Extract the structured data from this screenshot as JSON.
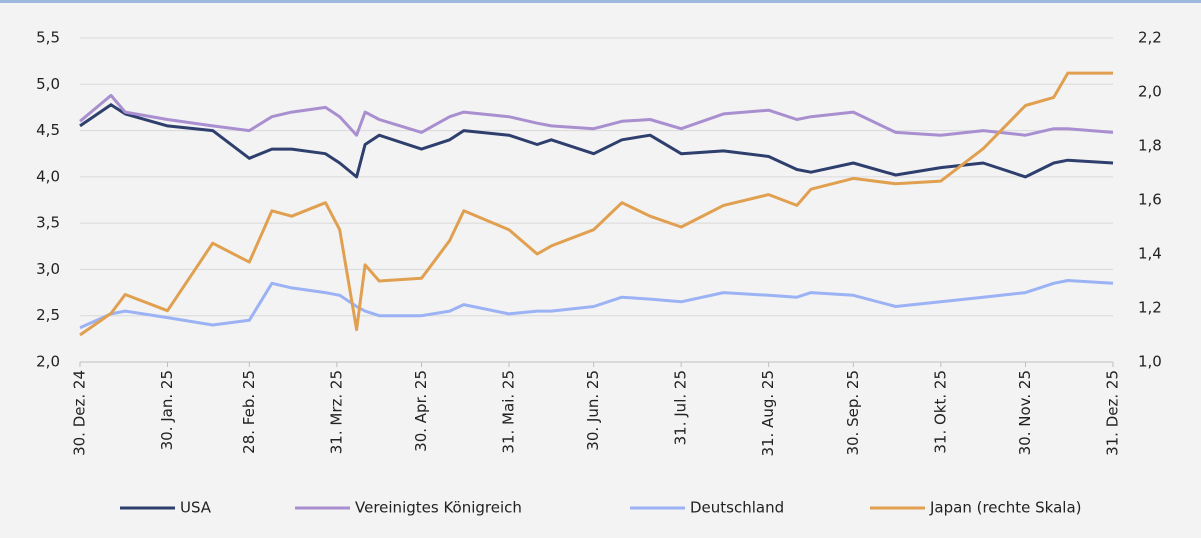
{
  "chart_data": {
    "type": "line",
    "x": [
      "2024-12-30",
      "2025-01-10",
      "2025-01-15",
      "2025-01-30",
      "2025-02-15",
      "2025-02-28",
      "2025-03-08",
      "2025-03-15",
      "2025-03-27",
      "2025-04-01",
      "2025-04-07",
      "2025-04-10",
      "2025-04-15",
      "2025-04-30",
      "2025-05-10",
      "2025-05-15",
      "2025-05-31",
      "2025-06-10",
      "2025-06-15",
      "2025-06-30",
      "2025-07-10",
      "2025-07-20",
      "2025-07-31",
      "2025-08-15",
      "2025-08-31",
      "2025-09-10",
      "2025-09-15",
      "2025-09-30",
      "2025-10-15",
      "2025-10-31",
      "2025-11-15",
      "2025-11-30",
      "2025-12-10",
      "2025-12-15",
      "2025-12-31"
    ],
    "series": [
      {
        "name": "USA",
        "color": "#2e3f6e",
        "values": [
          4.55,
          4.78,
          4.68,
          4.55,
          4.5,
          4.2,
          4.3,
          4.3,
          4.25,
          4.15,
          4.0,
          4.35,
          4.45,
          4.3,
          4.4,
          4.5,
          4.45,
          4.35,
          4.4,
          4.25,
          4.4,
          4.45,
          4.25,
          4.28,
          4.22,
          4.08,
          4.05,
          4.15,
          4.02,
          4.1,
          4.15,
          4.0,
          4.15,
          4.18,
          4.15
        ]
      },
      {
        "name": "Vereinigtes Königreich",
        "color": "#a98fd0",
        "values": [
          4.6,
          4.88,
          4.7,
          4.62,
          4.55,
          4.5,
          4.65,
          4.7,
          4.75,
          4.65,
          4.45,
          4.7,
          4.62,
          4.48,
          4.65,
          4.7,
          4.65,
          4.58,
          4.55,
          4.52,
          4.6,
          4.62,
          4.52,
          4.68,
          4.72,
          4.62,
          4.65,
          4.7,
          4.48,
          4.45,
          4.5,
          4.45,
          4.52,
          4.52,
          4.48
        ]
      },
      {
        "name": "Deutschland",
        "color": "#9bb2f5",
        "values": [
          2.37,
          2.52,
          2.55,
          2.48,
          2.4,
          2.45,
          2.85,
          2.8,
          2.75,
          2.72,
          2.6,
          2.55,
          2.5,
          2.5,
          2.55,
          2.62,
          2.52,
          2.55,
          2.55,
          2.6,
          2.7,
          2.68,
          2.65,
          2.75,
          2.72,
          2.7,
          2.75,
          2.72,
          2.6,
          2.65,
          2.7,
          2.75,
          2.85,
          2.88,
          2.85
        ]
      },
      {
        "name": "Japan (rechte Skala)",
        "color": "#e0a050",
        "axis": "y2",
        "values": [
          1.1,
          1.18,
          1.25,
          1.19,
          1.44,
          1.37,
          1.56,
          1.54,
          1.59,
          1.49,
          1.12,
          1.36,
          1.3,
          1.31,
          1.45,
          1.56,
          1.49,
          1.4,
          1.43,
          1.49,
          1.59,
          1.54,
          1.5,
          1.58,
          1.62,
          1.58,
          1.64,
          1.68,
          1.66,
          1.67,
          1.79,
          1.95,
          1.98,
          2.07,
          2.07
        ]
      }
    ],
    "xlim": [
      "2024-12-30",
      "2025-12-31"
    ],
    "xticks": [
      {
        "value": "2024-12-30",
        "label": "30. Dez. 24"
      },
      {
        "value": "2025-01-30",
        "label": "30. Jan. 25"
      },
      {
        "value": "2025-02-28",
        "label": "28. Feb. 25"
      },
      {
        "value": "2025-03-31",
        "label": "31. Mrz. 25"
      },
      {
        "value": "2025-04-30",
        "label": "30. Apr. 25"
      },
      {
        "value": "2025-05-31",
        "label": "31. Mai. 25"
      },
      {
        "value": "2025-06-30",
        "label": "30. Jun. 25"
      },
      {
        "value": "2025-07-31",
        "label": "31. Jul. 25"
      },
      {
        "value": "2025-08-31",
        "label": "31. Aug. 25"
      },
      {
        "value": "2025-09-30",
        "label": "30. Sep. 25"
      },
      {
        "value": "2025-10-31",
        "label": "31. Okt. 25"
      },
      {
        "value": "2025-11-30",
        "label": "30. Nov. 25"
      },
      {
        "value": "2025-12-31",
        "label": "31. Dez. 25"
      }
    ],
    "ylim": [
      2.0,
      5.5
    ],
    "yticks": [
      {
        "value": 2.0,
        "label": "2,0"
      },
      {
        "value": 2.5,
        "label": "2,5"
      },
      {
        "value": 3.0,
        "label": "3,0"
      },
      {
        "value": 3.5,
        "label": "3,5"
      },
      {
        "value": 4.0,
        "label": "4,0"
      },
      {
        "value": 4.5,
        "label": "4,5"
      },
      {
        "value": 5.0,
        "label": "5,0"
      },
      {
        "value": 5.5,
        "label": "5,5"
      }
    ],
    "y2lim": [
      1.0,
      2.2
    ],
    "y2ticks": [
      {
        "value": 1.0,
        "label": "1,0"
      },
      {
        "value": 1.2,
        "label": "1,2"
      },
      {
        "value": 1.4,
        "label": "1,4"
      },
      {
        "value": 1.6,
        "label": "1,6"
      },
      {
        "value": 1.8,
        "label": "1,8"
      },
      {
        "value": 2.0,
        "label": "2,0"
      },
      {
        "value": 2.2,
        "label": "2,2"
      }
    ],
    "grid": true,
    "legend": "bottom"
  }
}
